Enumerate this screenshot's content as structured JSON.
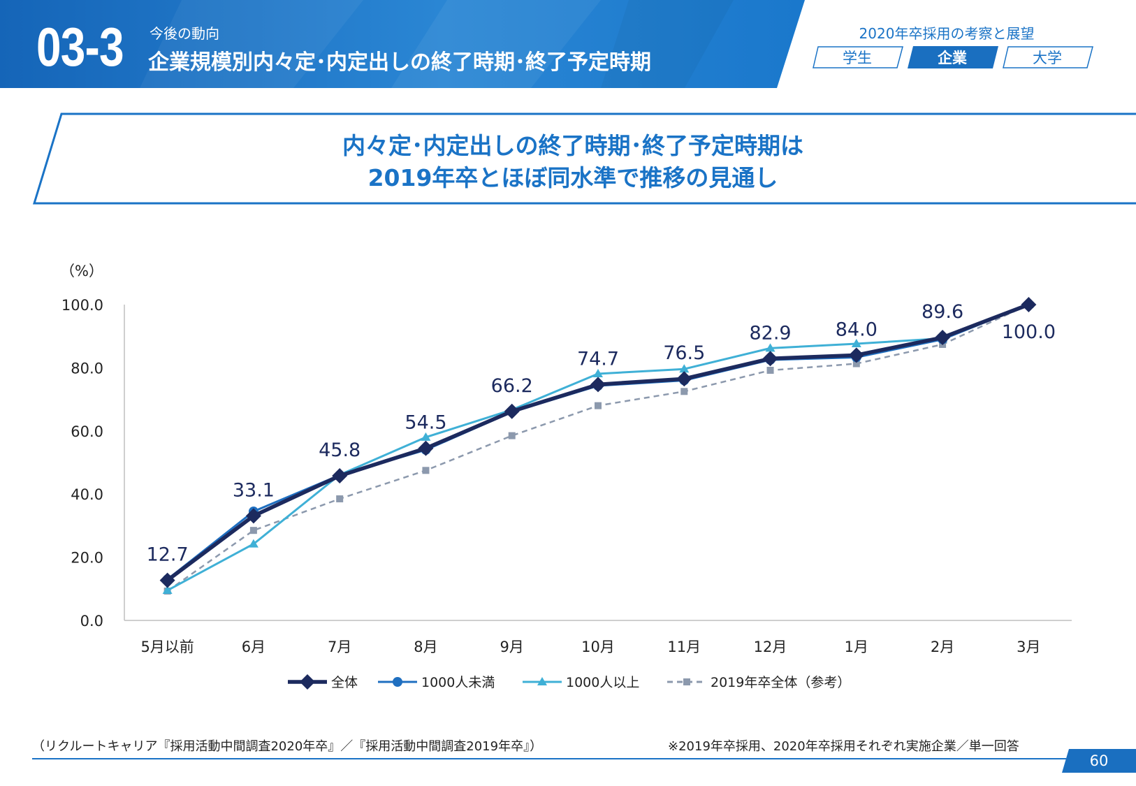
{
  "header": {
    "section_number": "03-3",
    "section_subtitle": "今後の動向",
    "section_title": "企業規模別内々定･内定出しの終了時期･終了予定時期",
    "report_title": "2020年卒採用の考察と展望",
    "tabs": [
      {
        "label": "学生",
        "active": false
      },
      {
        "label": "企業",
        "active": true
      },
      {
        "label": "大学",
        "active": false
      }
    ]
  },
  "headline": {
    "line1": "内々定･内定出しの終了時期･終了予定時期は",
    "line2": "2019年卒とほぼ同水準で推移の見通し"
  },
  "colors": {
    "brand": "#1a73c6",
    "banner_dark": "#1a6fc0",
    "series_total": "#1c2a5e",
    "series_small": "#1f6fc0",
    "series_large": "#3fb0d6",
    "series_2019": "#8c99ad"
  },
  "chart_data": {
    "type": "line",
    "unit_label": "（%）",
    "categories": [
      "5月以前",
      "6月",
      "7月",
      "8月",
      "9月",
      "10月",
      "11月",
      "12月",
      "1月",
      "2月",
      "3月"
    ],
    "y_ticks": [
      "0.0",
      "20.0",
      "40.0",
      "60.0",
      "80.0",
      "100.0"
    ],
    "ylim": [
      0,
      100
    ],
    "series": [
      {
        "name": "全体",
        "marker": "diamond",
        "values": [
          12.7,
          33.1,
          45.8,
          54.5,
          66.2,
          74.7,
          76.5,
          82.9,
          84.0,
          89.6,
          100.0
        ]
      },
      {
        "name": "1000人未満",
        "marker": "circle",
        "values": [
          13.0,
          34.5,
          46.0,
          54.0,
          66.0,
          74.3,
          76.0,
          82.5,
          83.3,
          89.0,
          100.0
        ]
      },
      {
        "name": "1000人以上",
        "marker": "triangle",
        "values": [
          9.5,
          24.2,
          46.1,
          58.0,
          66.7,
          78.1,
          79.6,
          86.2,
          87.6,
          89.3,
          100.0
        ]
      },
      {
        "name": "2019年卒全体（参考）",
        "marker": "square",
        "dashed": true,
        "values": [
          9.3,
          28.5,
          38.5,
          47.5,
          58.5,
          68.0,
          72.5,
          79.2,
          81.3,
          87.4,
          100.0
        ]
      }
    ],
    "data_labels": [
      "12.7",
      "33.1",
      "45.8",
      "54.5",
      "66.2",
      "74.7",
      "76.5",
      "82.9",
      "84.0",
      "89.6",
      "100.0"
    ]
  },
  "footer": {
    "source": "（リクルートキャリア『採用活動中間調査2020年卒』／『採用活動中間調査2019年卒』）",
    "note": "※2019年卒採用、2020年卒採用それぞれ実施企業／単一回答",
    "page_number": "60"
  }
}
